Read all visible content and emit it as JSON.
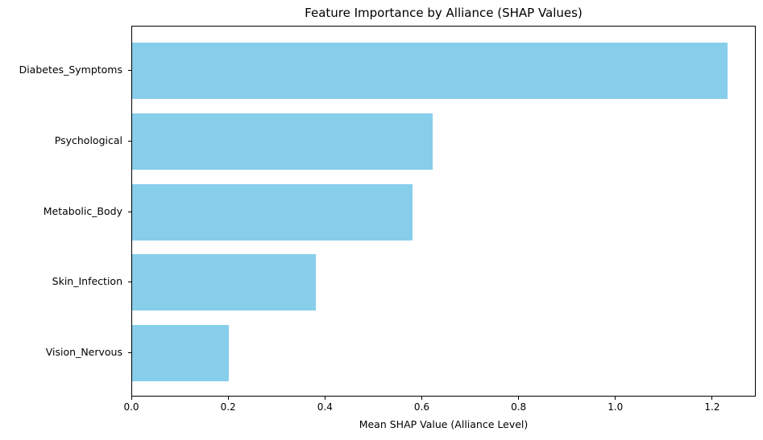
{
  "chart_data": {
    "type": "bar",
    "orientation": "horizontal",
    "title": "Feature Importance by Alliance (SHAP Values)",
    "xlabel": "Mean SHAP Value (Alliance Level)",
    "ylabel": "",
    "categories": [
      "Diabetes_Symptoms",
      "Psychological",
      "Metabolic_Body",
      "Skin_Infection",
      "Vision_Nervous"
    ],
    "values": [
      1.23,
      0.62,
      0.58,
      0.38,
      0.2
    ],
    "xlim": [
      0,
      1.29
    ],
    "xtick_values": [
      0.0,
      0.2,
      0.4,
      0.6,
      0.8,
      1.0,
      1.2
    ],
    "xtick_labels": [
      "0.0",
      "0.2",
      "0.4",
      "0.6",
      "0.8",
      "1.0",
      "1.2"
    ],
    "bar_color": "#87CEEB",
    "spine_color": "#000000",
    "text_color": "#000000",
    "background_color": "#ffffff",
    "grid": false,
    "legend": "none"
  }
}
